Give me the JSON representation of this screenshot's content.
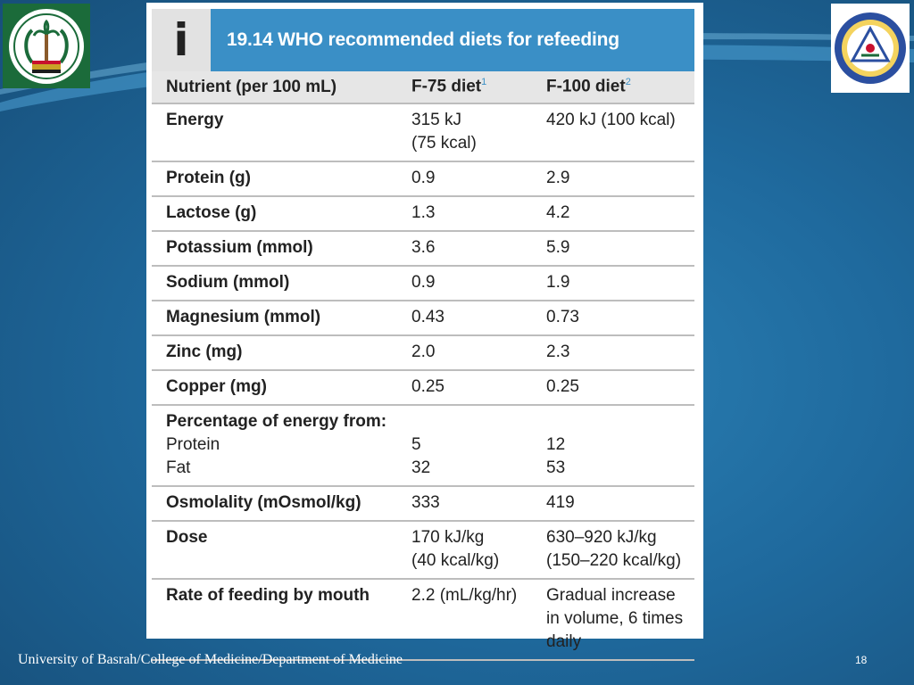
{
  "slide": {
    "footer": "University of Basrah/College of Medicine/Department of Medicine",
    "page_number": "18",
    "left_logo": "iraq-ministry-of-health-logo",
    "right_logo": "university-of-basrah-logo",
    "colors": {
      "header": "#3a8fc6",
      "background": "#1f6a9e",
      "header_row": "#e6e6e6"
    }
  },
  "table": {
    "icon_letter": "i",
    "title": "19.14  WHO recommended diets for refeeding",
    "headers": {
      "nutrient": "Nutrient (per 100 mL)",
      "f75": "F-75 diet",
      "f75_sup": "1",
      "f100": "F-100 diet",
      "f100_sup": "2"
    },
    "rows": [
      {
        "name": "Energy",
        "f75": [
          "315 kJ",
          "(75 kcal)"
        ],
        "f100": [
          "420 kJ (100 kcal)"
        ]
      },
      {
        "name": "Protein (g)",
        "f75": [
          "0.9"
        ],
        "f100": [
          "2.9"
        ]
      },
      {
        "name": "Lactose (g)",
        "f75": [
          "1.3"
        ],
        "f100": [
          "4.2"
        ]
      },
      {
        "name": "Potassium (mmol)",
        "f75": [
          "3.6"
        ],
        "f100": [
          "5.9"
        ]
      },
      {
        "name": "Sodium (mmol)",
        "f75": [
          "0.9"
        ],
        "f100": [
          "1.9"
        ]
      },
      {
        "name": "Magnesium (mmol)",
        "f75": [
          "0.43"
        ],
        "f100": [
          "0.73"
        ]
      },
      {
        "name": "Zinc (mg)",
        "f75": [
          "2.0"
        ],
        "f100": [
          "2.3"
        ]
      },
      {
        "name": "Copper (mg)",
        "f75": [
          "0.25"
        ],
        "f100": [
          "0.25"
        ]
      },
      {
        "name": "Percentage of energy from:",
        "sub": [
          "Protein",
          "Fat"
        ],
        "f75": [
          "",
          "5",
          "32"
        ],
        "f100": [
          "",
          "12",
          "53"
        ]
      },
      {
        "name": "Osmolality (mOsmol/kg)",
        "f75": [
          "333"
        ],
        "f100": [
          "419"
        ]
      },
      {
        "name": "Dose",
        "f75": [
          "170 kJ/kg",
          "(40 kcal/kg)"
        ],
        "f100": [
          "630–920 kJ/kg",
          "(150–220 kcal/kg)"
        ]
      },
      {
        "name": "Rate of feeding by mouth",
        "f75": [
          "2.2 (mL/kg/hr)"
        ],
        "f100": [
          "Gradual increase",
          "in volume, 6 times",
          "daily"
        ]
      }
    ]
  }
}
